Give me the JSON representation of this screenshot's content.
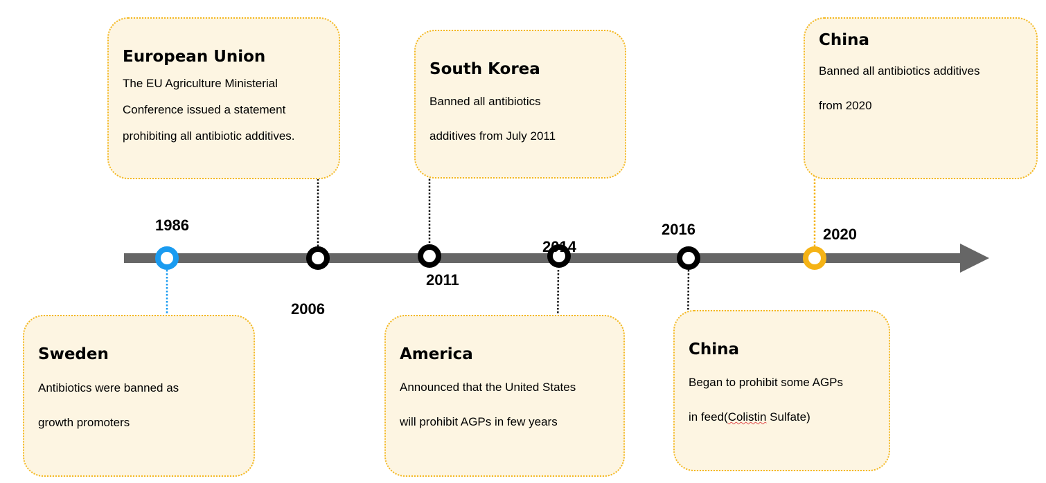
{
  "events": [
    {
      "year": "1986",
      "title": "Sweden",
      "lines": [
        "Antibiotics were banned as",
        "growth promoters"
      ],
      "color": "#1a9bf0"
    },
    {
      "year": "2006",
      "title": "European Union",
      "lines": [
        "The EU Agriculture Ministerial",
        "Conference issued a statement",
        "prohibiting all antibiotic additives."
      ],
      "color": "#000000"
    },
    {
      "year": "2011",
      "title": "South Korea",
      "lines": [
        "Banned all antibiotics",
        "additives from July 2011"
      ],
      "color": "#000000"
    },
    {
      "year": "2014",
      "title": "America",
      "lines": [
        "Announced that the United States",
        "will prohibit AGPs in few years"
      ],
      "color": "#000000"
    },
    {
      "year": "2016",
      "title": "China",
      "lines": [
        "Began to prohibit some AGPs",
        "in feed(",
        "Colistin",
        " Sulfate)"
      ],
      "color": "#000000"
    },
    {
      "year": "2020",
      "title": "China",
      "lines": [
        "Banned all antibiotics additives",
        "from 2020"
      ],
      "color": "#f5b316"
    }
  ],
  "colors": {
    "axis": "#666666",
    "box_fill": "#fdf5e2",
    "box_border": "#f4b820"
  }
}
